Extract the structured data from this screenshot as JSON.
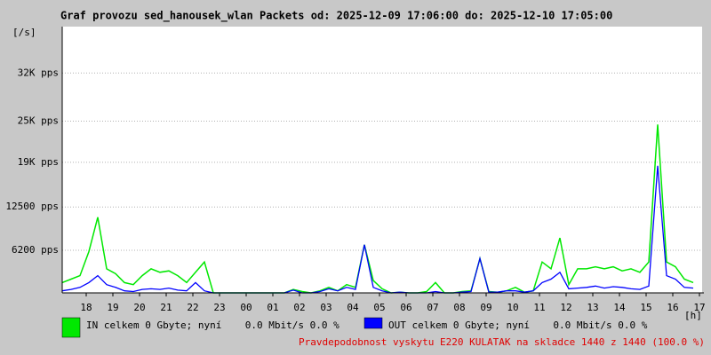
{
  "chart_data": {
    "type": "line",
    "title": "Graf provozu sed_hanousek_wlan Packets od: 2025-12-09 17:06:00 do: 2025-12-10 17:05:00",
    "y_label": "[/s]",
    "x_label": "[h]",
    "xlim": [
      0,
      1440
    ],
    "xticks": [
      {
        "value": 54,
        "label": "18"
      },
      {
        "value": 114,
        "label": "19"
      },
      {
        "value": 174,
        "label": "20"
      },
      {
        "value": 234,
        "label": "21"
      },
      {
        "value": 294,
        "label": "22"
      },
      {
        "value": 354,
        "label": "23"
      },
      {
        "value": 414,
        "label": "00"
      },
      {
        "value": 474,
        "label": "01"
      },
      {
        "value": 534,
        "label": "02"
      },
      {
        "value": 594,
        "label": "03"
      },
      {
        "value": 654,
        "label": "04"
      },
      {
        "value": 714,
        "label": "05"
      },
      {
        "value": 774,
        "label": "06"
      },
      {
        "value": 834,
        "label": "07"
      },
      {
        "value": 894,
        "label": "08"
      },
      {
        "value": 954,
        "label": "09"
      },
      {
        "value": 1014,
        "label": "10"
      },
      {
        "value": 1074,
        "label": "11"
      },
      {
        "value": 1134,
        "label": "12"
      },
      {
        "value": 1194,
        "label": "13"
      },
      {
        "value": 1254,
        "label": "14"
      },
      {
        "value": 1314,
        "label": "15"
      },
      {
        "value": 1374,
        "label": "16"
      },
      {
        "value": 1434,
        "label": "17"
      }
    ],
    "ylim": [
      0,
      38750
    ],
    "yticks": [
      {
        "value": 6200,
        "label": "6200 pps"
      },
      {
        "value": 12500,
        "label": "12500 pps"
      },
      {
        "value": 19000,
        "label": "19K pps"
      },
      {
        "value": 25000,
        "label": "25K pps"
      },
      {
        "value": 32000,
        "label": "32K pps"
      }
    ],
    "grid": true,
    "x": [
      0,
      20,
      40,
      60,
      80,
      100,
      120,
      140,
      160,
      180,
      200,
      220,
      240,
      260,
      280,
      300,
      320,
      340,
      360,
      380,
      400,
      420,
      440,
      460,
      480,
      500,
      520,
      540,
      560,
      580,
      600,
      620,
      640,
      660,
      680,
      700,
      720,
      740,
      760,
      780,
      800,
      820,
      840,
      860,
      880,
      900,
      920,
      940,
      960,
      980,
      1000,
      1020,
      1040,
      1060,
      1080,
      1100,
      1120,
      1140,
      1160,
      1180,
      1200,
      1220,
      1240,
      1260,
      1280,
      1300,
      1320,
      1340,
      1360,
      1380,
      1400,
      1420
    ],
    "series": [
      {
        "name": "IN celkem 0 Gbyte; nyní    0.0 Mbit/s 0.0 %",
        "color": "#00e800",
        "values": [
          1500,
          2000,
          2500,
          6000,
          11000,
          3500,
          2800,
          1500,
          1200,
          2500,
          3500,
          3000,
          3200,
          2500,
          1500,
          3000,
          4500,
          0,
          0,
          0,
          0,
          0,
          0,
          0,
          0,
          0,
          500,
          200,
          0,
          300,
          800,
          300,
          1200,
          800,
          7000,
          1800,
          600,
          0,
          100,
          0,
          0,
          200,
          1500,
          0,
          0,
          200,
          300,
          5000,
          200,
          100,
          300,
          800,
          100,
          300,
          4500,
          3500,
          8000,
          1200,
          3500,
          3500,
          3800,
          3500,
          3800,
          3200,
          3500,
          3000,
          4500,
          24500,
          4500,
          3800,
          2000,
          1500
        ]
      },
      {
        "name": "OUT celkem 0 Gbyte; nyní    0.0 Mbit/s 0.0 %",
        "color": "#0000ff",
        "values": [
          300,
          500,
          800,
          1500,
          2500,
          1200,
          800,
          300,
          200,
          500,
          600,
          500,
          700,
          400,
          300,
          1500,
          300,
          0,
          0,
          0,
          0,
          0,
          0,
          0,
          0,
          0,
          400,
          0,
          0,
          200,
          600,
          300,
          800,
          500,
          7000,
          800,
          300,
          0,
          100,
          0,
          0,
          0,
          200,
          0,
          0,
          100,
          200,
          5000,
          100,
          100,
          300,
          300,
          100,
          300,
          1500,
          2000,
          3000,
          600,
          700,
          800,
          1000,
          700,
          900,
          800,
          600,
          500,
          1000,
          18500,
          2500,
          2000,
          800,
          700
        ]
      }
    ],
    "footnote": "Pravdepodobnost vyskytu E220 KULATAK na skladce 1440 z 1440 (100.0 %)"
  }
}
